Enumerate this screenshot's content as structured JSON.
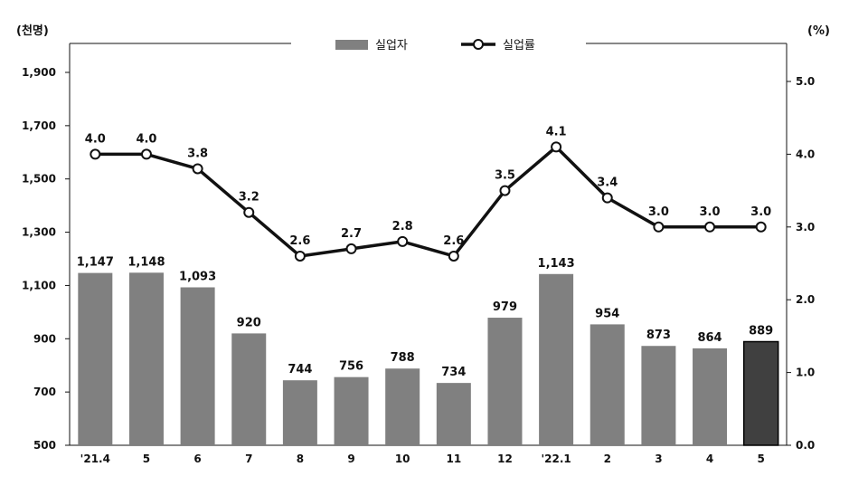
{
  "chart_data": {
    "type": "bar",
    "categories": [
      "'21.4",
      "5",
      "6",
      "7",
      "8",
      "9",
      "10",
      "11",
      "12",
      "'22.1",
      "2",
      "3",
      "4",
      "5"
    ],
    "series": [
      {
        "name": "실업자",
        "type": "bar",
        "axis": "left",
        "values": [
          1147,
          1148,
          1093,
          920,
          744,
          756,
          788,
          734,
          979,
          1143,
          954,
          873,
          864,
          889
        ],
        "labels": [
          "1,147",
          "1,148",
          "1,093",
          "920",
          "744",
          "756",
          "788",
          "734",
          "979",
          "1,143",
          "954",
          "873",
          "864",
          "889"
        ],
        "color": "#808080",
        "highlight_last_color": "#404040"
      },
      {
        "name": "실업률",
        "type": "line",
        "axis": "right",
        "values": [
          4.0,
          4.0,
          3.8,
          3.2,
          2.6,
          2.7,
          2.8,
          2.6,
          3.5,
          4.1,
          3.4,
          3.0,
          3.0,
          3.0
        ],
        "labels": [
          "4.0",
          "4.0",
          "3.8",
          "3.2",
          "2.6",
          "2.7",
          "2.8",
          "2.6",
          "3.5",
          "4.1",
          "3.4",
          "3.0",
          "3.0",
          "3.0"
        ],
        "color": "#111111",
        "marker": "open-circle"
      }
    ],
    "left_axis": {
      "unit_label": "(천명)",
      "ylim": [
        500,
        1900
      ],
      "ticks": [
        500,
        700,
        900,
        1100,
        1300,
        1500,
        1700,
        1900
      ],
      "tick_labels": [
        "500",
        "700",
        "900",
        "1,100",
        "1,300",
        "1,500",
        "1,700",
        "1,900"
      ]
    },
    "right_axis": {
      "unit_label": "(%)",
      "ylim": [
        0.0,
        5.0
      ],
      "ticks": [
        0,
        1,
        2,
        3,
        4,
        5
      ],
      "tick_labels": [
        "0.0",
        "1.0",
        "2.0",
        "3.0",
        "4.0",
        "5.0"
      ]
    },
    "legend_position": "top-center",
    "grid": false
  }
}
